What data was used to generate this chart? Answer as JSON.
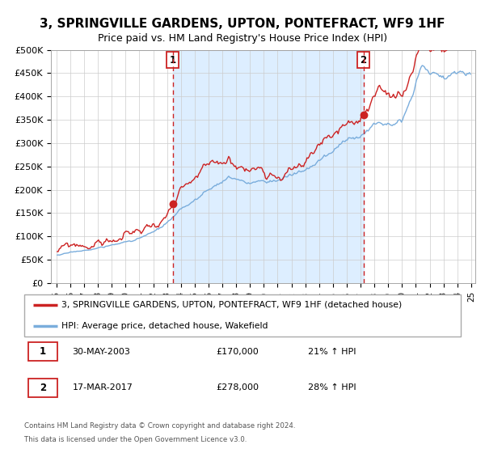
{
  "title": "3, SPRINGVILLE GARDENS, UPTON, PONTEFRACT, WF9 1HF",
  "subtitle": "Price paid vs. HM Land Registry's House Price Index (HPI)",
  "legend_line1": "3, SPRINGVILLE GARDENS, UPTON, PONTEFRACT, WF9 1HF (detached house)",
  "legend_line2": "HPI: Average price, detached house, Wakefield",
  "ann1_label": "1",
  "ann1_date": "30-MAY-2003",
  "ann1_price": "£170,000",
  "ann1_hpi": "21% ↑ HPI",
  "ann2_label": "2",
  "ann2_date": "17-MAR-2017",
  "ann2_price": "£278,000",
  "ann2_hpi": "28% ↑ HPI",
  "footer1": "Contains HM Land Registry data © Crown copyright and database right 2024.",
  "footer2": "This data is licensed under the Open Government Licence v3.0.",
  "ylim": [
    0,
    500000
  ],
  "yticks": [
    0,
    50000,
    100000,
    150000,
    200000,
    250000,
    300000,
    350000,
    400000,
    450000,
    500000
  ],
  "hpi_color": "#7aaddc",
  "price_color": "#cc2222",
  "dot_color": "#cc2222",
  "vline_color": "#cc2222",
  "fill_color": "#ddeeff",
  "ann1_x": 2003.41,
  "ann2_x": 2017.21,
  "xmin": 1994.6,
  "xmax": 2025.3
}
